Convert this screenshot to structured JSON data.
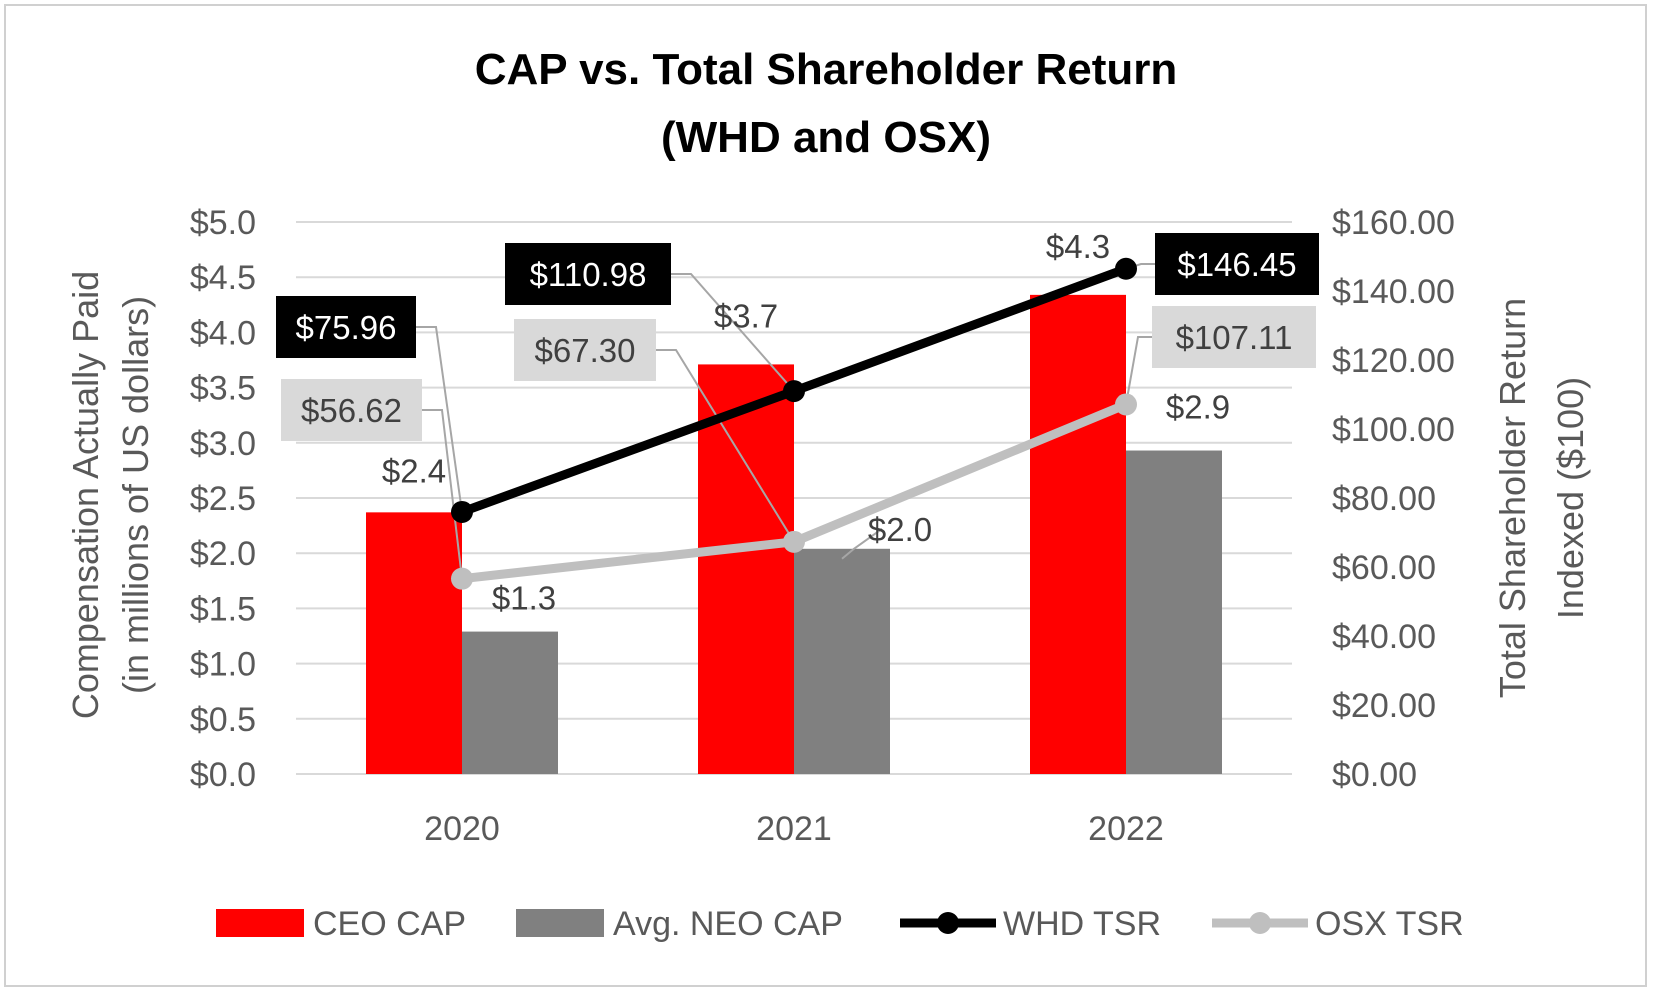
{
  "chart_data": {
    "type": "bar",
    "title_line1": "CAP vs. Total Shareholder Return",
    "title_line2": "(WHD and OSX)",
    "categories": [
      "2020",
      "2021",
      "2022"
    ],
    "ylabel_line1": "Compensation Actually Paid",
    "ylabel_line2": "(in millions of US dollars)",
    "y2label_line1": "Total Shareholder Return",
    "y2label_line2": "Indexed ($100)",
    "ylim": [
      0,
      5
    ],
    "y2lim": [
      0,
      160
    ],
    "y_ticks": [
      "$0.0",
      "$0.5",
      "$1.0",
      "$1.5",
      "$2.0",
      "$2.5",
      "$3.0",
      "$3.5",
      "$4.0",
      "$4.5",
      "$5.0"
    ],
    "y2_ticks": [
      "$0.00",
      "$20.00",
      "$40.00",
      "$60.00",
      "$80.00",
      "$100.00",
      "$120.00",
      "$140.00",
      "$160.00"
    ],
    "bar_series": [
      {
        "name": "CEO CAP",
        "color": "#ff0000",
        "values": [
          2.37,
          3.71,
          4.34
        ],
        "labels": [
          "$2.4",
          "$3.7",
          "$4.3"
        ]
      },
      {
        "name": "Avg. NEO CAP",
        "color": "#808080",
        "values": [
          1.29,
          2.04,
          2.93
        ],
        "labels": [
          "$1.3",
          "$2.0",
          "$2.9"
        ]
      }
    ],
    "line_series": [
      {
        "name": "WHD TSR",
        "color": "#000000",
        "axis": "secondary",
        "values": [
          75.96,
          110.98,
          146.45
        ],
        "labels": [
          "$75.96",
          "$110.98",
          "$146.45"
        ]
      },
      {
        "name": "OSX TSR",
        "color": "#bfbfbf",
        "axis": "secondary",
        "values": [
          56.62,
          67.3,
          107.11
        ],
        "labels": [
          "$56.62",
          "$67.30",
          "$107.11"
        ]
      }
    ],
    "legend_position": "bottom",
    "grid": true
  }
}
